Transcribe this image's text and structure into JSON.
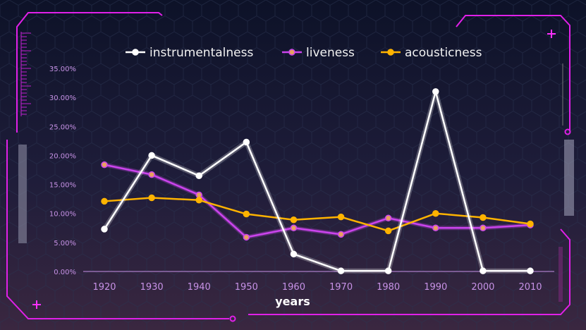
{
  "chart_data": {
    "type": "line",
    "xlabel": "years",
    "ylabel": "",
    "categories": [
      "1920",
      "1930",
      "1940",
      "1950",
      "1960",
      "1970",
      "1980",
      "1990",
      "2000",
      "2010"
    ],
    "y_ticks": [
      "0.00%",
      "5.00%",
      "10.00%",
      "15.00%",
      "20.00%",
      "25.00%",
      "30.00%",
      "35.00%"
    ],
    "ylim": [
      0,
      35
    ],
    "grid": false,
    "legend_position": "top",
    "series": [
      {
        "name": "instrumentalness",
        "color": "#ffffff",
        "values": [
          7.3,
          20.0,
          16.5,
          22.3,
          3.0,
          0.1,
          0.1,
          31.0,
          0.1,
          0.1
        ]
      },
      {
        "name": "liveness",
        "color": "#cc44ee",
        "values": [
          18.4,
          16.7,
          13.2,
          5.9,
          7.5,
          6.4,
          9.2,
          7.5,
          7.5,
          8.0
        ]
      },
      {
        "name": "acousticness",
        "color": "#ffb300",
        "values": [
          12.1,
          12.7,
          12.3,
          9.9,
          8.9,
          9.4,
          7.0,
          10.0,
          9.3,
          8.2
        ]
      }
    ]
  }
}
